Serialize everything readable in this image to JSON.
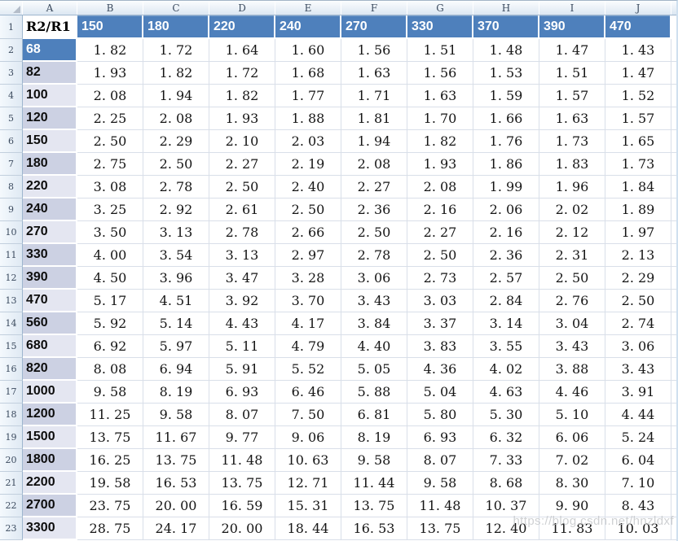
{
  "watermark": "https://blog.csdn.net/hnzldxf",
  "colors": {
    "header_blue": "#4e80bc",
    "band_dark": "#ccd1e3",
    "band_light": "#e4e6f1",
    "gridline": "#d9dfe9",
    "chrome_border": "#9eb6ce"
  },
  "sheet": {
    "column_letters": [
      "A",
      "B",
      "C",
      "D",
      "E",
      "F",
      "G",
      "H",
      "I",
      "J"
    ],
    "header_row": {
      "number": "1",
      "label": "R2/R1",
      "values": [
        "150",
        "180",
        "220",
        "240",
        "270",
        "330",
        "370",
        "390",
        "470"
      ]
    },
    "rows": [
      {
        "number": "2",
        "label": "68",
        "band": "blue",
        "values": [
          "1. 82",
          "1. 72",
          "1. 64",
          "1. 60",
          "1. 56",
          "1. 51",
          "1. 48",
          "1. 47",
          "1. 43"
        ]
      },
      {
        "number": "3",
        "label": "82",
        "band": "dark",
        "values": [
          "1. 93",
          "1. 82",
          "1. 72",
          "1. 68",
          "1. 63",
          "1. 56",
          "1. 53",
          "1. 51",
          "1. 47"
        ]
      },
      {
        "number": "4",
        "label": "100",
        "band": "light",
        "values": [
          "2. 08",
          "1. 94",
          "1. 82",
          "1. 77",
          "1. 71",
          "1. 63",
          "1. 59",
          "1. 57",
          "1. 52"
        ]
      },
      {
        "number": "5",
        "label": "120",
        "band": "dark",
        "values": [
          "2. 25",
          "2. 08",
          "1. 93",
          "1. 88",
          "1. 81",
          "1. 70",
          "1. 66",
          "1. 63",
          "1. 57"
        ]
      },
      {
        "number": "6",
        "label": "150",
        "band": "light",
        "values": [
          "2. 50",
          "2. 29",
          "2. 10",
          "2. 03",
          "1. 94",
          "1. 82",
          "1. 76",
          "1. 73",
          "1. 65"
        ]
      },
      {
        "number": "7",
        "label": "180",
        "band": "dark",
        "values": [
          "2. 75",
          "2. 50",
          "2. 27",
          "2. 19",
          "2. 08",
          "1. 93",
          "1. 86",
          "1. 83",
          "1. 73"
        ]
      },
      {
        "number": "8",
        "label": "220",
        "band": "light",
        "values": [
          "3. 08",
          "2. 78",
          "2. 50",
          "2. 40",
          "2. 27",
          "2. 08",
          "1. 99",
          "1. 96",
          "1. 84"
        ]
      },
      {
        "number": "9",
        "label": "240",
        "band": "dark",
        "values": [
          "3. 25",
          "2. 92",
          "2. 61",
          "2. 50",
          "2. 36",
          "2. 16",
          "2. 06",
          "2. 02",
          "1. 89"
        ]
      },
      {
        "number": "10",
        "label": "270",
        "band": "light",
        "values": [
          "3. 50",
          "3. 13",
          "2. 78",
          "2. 66",
          "2. 50",
          "2. 27",
          "2. 16",
          "2. 12",
          "1. 97"
        ]
      },
      {
        "number": "11",
        "label": "330",
        "band": "dark",
        "values": [
          "4. 00",
          "3. 54",
          "3. 13",
          "2. 97",
          "2. 78",
          "2. 50",
          "2. 36",
          "2. 31",
          "2. 13"
        ]
      },
      {
        "number": "12",
        "label": "390",
        "band": "dark",
        "values": [
          "4. 50",
          "3. 96",
          "3. 47",
          "3. 28",
          "3. 06",
          "2. 73",
          "2. 57",
          "2. 50",
          "2. 29"
        ]
      },
      {
        "number": "13",
        "label": "470",
        "band": "light",
        "values": [
          "5. 17",
          "4. 51",
          "3. 92",
          "3. 70",
          "3. 43",
          "3. 03",
          "2. 84",
          "2. 76",
          "2. 50"
        ]
      },
      {
        "number": "14",
        "label": "560",
        "band": "dark",
        "values": [
          "5. 92",
          "5. 14",
          "4. 43",
          "4. 17",
          "3. 84",
          "3. 37",
          "3. 14",
          "3. 04",
          "2. 74"
        ]
      },
      {
        "number": "15",
        "label": "680",
        "band": "light",
        "values": [
          "6. 92",
          "5. 97",
          "5. 11",
          "4. 79",
          "4. 40",
          "3. 83",
          "3. 55",
          "3. 43",
          "3. 06"
        ]
      },
      {
        "number": "16",
        "label": "820",
        "band": "dark",
        "values": [
          "8. 08",
          "6. 94",
          "5. 91",
          "5. 52",
          "5. 05",
          "4. 36",
          "4. 02",
          "3. 88",
          "3. 43"
        ]
      },
      {
        "number": "17",
        "label": "1000",
        "band": "light",
        "values": [
          "9. 58",
          "8. 19",
          "6. 93",
          "6. 46",
          "5. 88",
          "5. 04",
          "4. 63",
          "4. 46",
          "3. 91"
        ]
      },
      {
        "number": "18",
        "label": "1200",
        "band": "dark",
        "values": [
          "11. 25",
          "9. 58",
          "8. 07",
          "7. 50",
          "6. 81",
          "5. 80",
          "5. 30",
          "5. 10",
          "4. 44"
        ]
      },
      {
        "number": "19",
        "label": "1500",
        "band": "light",
        "values": [
          "13. 75",
          "11. 67",
          "9. 77",
          "9. 06",
          "8. 19",
          "6. 93",
          "6. 32",
          "6. 06",
          "5. 24"
        ]
      },
      {
        "number": "20",
        "label": "1800",
        "band": "dark",
        "values": [
          "16. 25",
          "13. 75",
          "11. 48",
          "10. 63",
          "9. 58",
          "8. 07",
          "7. 33",
          "7. 02",
          "6. 04"
        ]
      },
      {
        "number": "21",
        "label": "2200",
        "band": "light",
        "values": [
          "19. 58",
          "16. 53",
          "13. 75",
          "12. 71",
          "11. 44",
          "9. 58",
          "8. 68",
          "8. 30",
          "7. 10"
        ]
      },
      {
        "number": "22",
        "label": "2700",
        "band": "dark",
        "values": [
          "23. 75",
          "20. 00",
          "16. 59",
          "15. 31",
          "13. 75",
          "11. 48",
          "10. 37",
          "9. 90",
          "8. 43"
        ]
      },
      {
        "number": "23",
        "label": "3300",
        "band": "light",
        "values": [
          "28. 75",
          "24. 17",
          "20. 00",
          "18. 44",
          "16. 53",
          "13. 75",
          "12. 40",
          "11. 83",
          "10. 03"
        ]
      }
    ]
  }
}
